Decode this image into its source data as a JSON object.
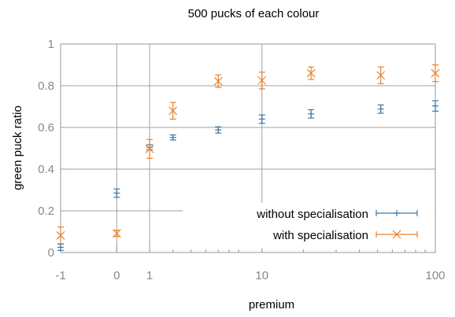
{
  "chart_data": {
    "type": "scatter",
    "title": "500 pucks of each colour",
    "xlabel": "premium",
    "ylabel": "green puck ratio",
    "xscale": "log (premium + 2)",
    "ylim": [
      0,
      1
    ],
    "x_ticks": [
      {
        "value": -1,
        "label": "-1"
      },
      {
        "value": 0,
        "label": "0"
      },
      {
        "value": 1,
        "label": "1"
      },
      {
        "value": 10,
        "label": "10"
      },
      {
        "value": 100,
        "label": "100"
      }
    ],
    "y_ticks": [
      {
        "value": 0,
        "label": "0"
      },
      {
        "value": 0.2,
        "label": "0.2"
      },
      {
        "value": 0.4,
        "label": "0.4"
      },
      {
        "value": 0.6,
        "label": "0.6"
      },
      {
        "value": 0.8,
        "label": "0.8"
      },
      {
        "value": 1,
        "label": "1"
      }
    ],
    "grid": true,
    "legend_position": "bottom-right",
    "series": [
      {
        "name": "without specialisation",
        "marker": "plus",
        "color": "#3a78a8",
        "x": [
          -1,
          0,
          1,
          2,
          5,
          10,
          20,
          50,
          100
        ],
        "y": [
          0.025,
          0.285,
          0.505,
          0.552,
          0.588,
          0.64,
          0.665,
          0.688,
          0.703
        ],
        "yerr": [
          0.015,
          0.02,
          0.012,
          0.012,
          0.015,
          0.02,
          0.02,
          0.02,
          0.025
        ]
      },
      {
        "name": "with specialisation",
        "marker": "x",
        "color": "#e8822a",
        "x": [
          -1,
          0,
          1,
          2,
          5,
          10,
          20,
          50,
          100
        ],
        "y": [
          0.082,
          0.092,
          0.497,
          0.68,
          0.822,
          0.825,
          0.86,
          0.85,
          0.86
        ],
        "yerr": [
          0.04,
          0.015,
          0.045,
          0.04,
          0.03,
          0.04,
          0.03,
          0.04,
          0.04
        ]
      }
    ]
  }
}
